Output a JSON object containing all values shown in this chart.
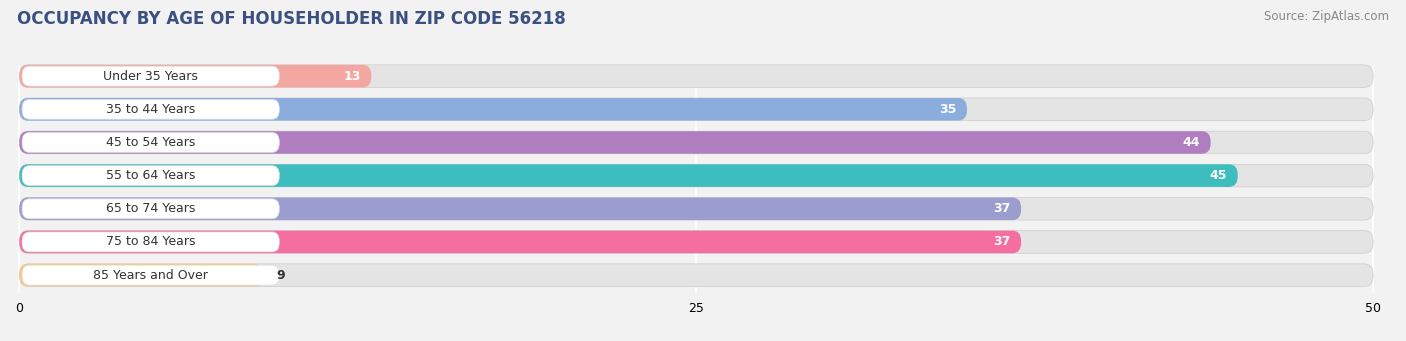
{
  "title": "OCCUPANCY BY AGE OF HOUSEHOLDER IN ZIP CODE 56218",
  "source": "Source: ZipAtlas.com",
  "categories": [
    "Under 35 Years",
    "35 to 44 Years",
    "45 to 54 Years",
    "55 to 64 Years",
    "65 to 74 Years",
    "75 to 84 Years",
    "85 Years and Over"
  ],
  "values": [
    13,
    35,
    44,
    45,
    37,
    37,
    9
  ],
  "bar_colors": [
    "#f4a6a0",
    "#8aadde",
    "#b07ec0",
    "#3dbdbe",
    "#9b9dce",
    "#f46ea0",
    "#f8c888"
  ],
  "xlim_max": 50,
  "xticks": [
    0,
    25,
    50
  ],
  "background_color": "#f2f2f2",
  "bar_bg_color": "#e4e4e4",
  "label_bg_color": "#ffffff",
  "title_fontsize": 12,
  "source_fontsize": 8.5,
  "label_fontsize": 9,
  "value_fontsize": 9,
  "title_color": "#3a5080",
  "source_color": "#888888"
}
